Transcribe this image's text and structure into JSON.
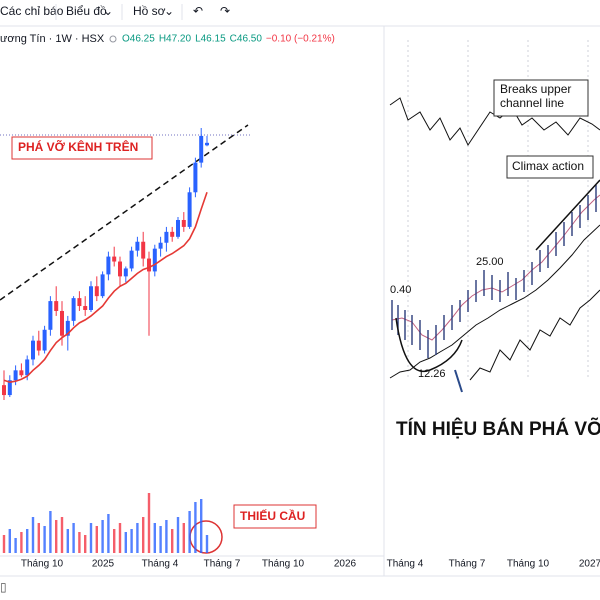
{
  "toolbar": {
    "items": [
      "Các chỉ báo",
      "Biểu đồ",
      "Hồ sơ"
    ]
  },
  "header": {
    "symbol": "ương Tín · 1W · HSX",
    "ohlc": [
      "O46.25",
      "H47.20",
      "L46.15",
      "C46.50",
      "−0.10 (−0.21%)"
    ]
  },
  "left_chart": {
    "annotations": [
      "PHÁ VỠ KÊNH TRÊN",
      "THIẾU CẦU"
    ],
    "x_labels": [
      "Tháng 10",
      "2025",
      "Tháng 4",
      "Tháng 7",
      "Tháng 10",
      "2026"
    ],
    "candles": [
      [
        22,
        23.5,
        20.5,
        21
      ],
      [
        21,
        23,
        20.8,
        22.5
      ],
      [
        22.5,
        24,
        22,
        23.5
      ],
      [
        23.5,
        24.2,
        22.8,
        23
      ],
      [
        23,
        25,
        22.5,
        24.6
      ],
      [
        24.6,
        27,
        24,
        26.5
      ],
      [
        26.5,
        27.5,
        25,
        25.5
      ],
      [
        25.5,
        28,
        25.2,
        27.6
      ],
      [
        27.6,
        31,
        27,
        30.5
      ],
      [
        30.5,
        32,
        29,
        29.5
      ],
      [
        29.5,
        30.5,
        26,
        27
      ],
      [
        27,
        29,
        25.5,
        28.5
      ],
      [
        28.5,
        31,
        28,
        30.8
      ],
      [
        30.8,
        31.5,
        29.5,
        30
      ],
      [
        30,
        31,
        29,
        29.6
      ],
      [
        29.6,
        32.5,
        29.4,
        32
      ],
      [
        32,
        33,
        30.5,
        31
      ],
      [
        31,
        33.5,
        30.8,
        33.2
      ],
      [
        33.2,
        35.5,
        32.6,
        35
      ],
      [
        35,
        36,
        34,
        34.5
      ],
      [
        34.5,
        35,
        32,
        33
      ],
      [
        33,
        34,
        32.4,
        33.8
      ],
      [
        33.8,
        36,
        33.5,
        35.6
      ],
      [
        35.6,
        37,
        35,
        36.5
      ],
      [
        36.5,
        37.5,
        34,
        34.8
      ],
      [
        34.8,
        35.5,
        27,
        33.5
      ],
      [
        33.5,
        36.2,
        33,
        35.8
      ],
      [
        35.8,
        37,
        35,
        36.4
      ],
      [
        36.4,
        38,
        35.5,
        37.5
      ],
      [
        37.5,
        38,
        36.5,
        37
      ],
      [
        37,
        39,
        36.8,
        38.7
      ],
      [
        38.7,
        39.5,
        37.5,
        38
      ],
      [
        38,
        42,
        37.8,
        41.5
      ],
      [
        41.5,
        45,
        41,
        44.5
      ],
      [
        44.5,
        48,
        44,
        47.2
      ],
      [
        46.25,
        47.2,
        46.15,
        46.5
      ]
    ],
    "ma": [
      22.5,
      22.3,
      22.4,
      22.6,
      22.9,
      23.5,
      24,
      24.6,
      25.5,
      26.3,
      26.8,
      27.2,
      27.8,
      28.3,
      28.6,
      29,
      29.5,
      30,
      30.8,
      31.5,
      32,
      32.3,
      32.8,
      33.3,
      33.7,
      33.9,
      34.2,
      34.6,
      35,
      35.3,
      35.7,
      36.1,
      36.8,
      38,
      39.8,
      41.5
    ],
    "volume": [
      3,
      4,
      2.5,
      3.5,
      4,
      6,
      5,
      4.5,
      7,
      5.5,
      6,
      4,
      5,
      3.5,
      3,
      5,
      4.5,
      5.5,
      6.5,
      4,
      5,
      3.5,
      4,
      5,
      6,
      10,
      5,
      4.5,
      5.5,
      4,
      6,
      5,
      7,
      8.5,
      9,
      3
    ]
  },
  "right_chart": {
    "labels": [
      "Breaks upper channel line",
      "Climax action",
      "25.00",
      "0.40",
      "12.26"
    ],
    "title": "TÍN HIỆU BÁN PHÁ VỠ K",
    "x_labels": [
      "Tháng 4",
      "Tháng 7",
      "Tháng 10",
      "2027"
    ]
  }
}
